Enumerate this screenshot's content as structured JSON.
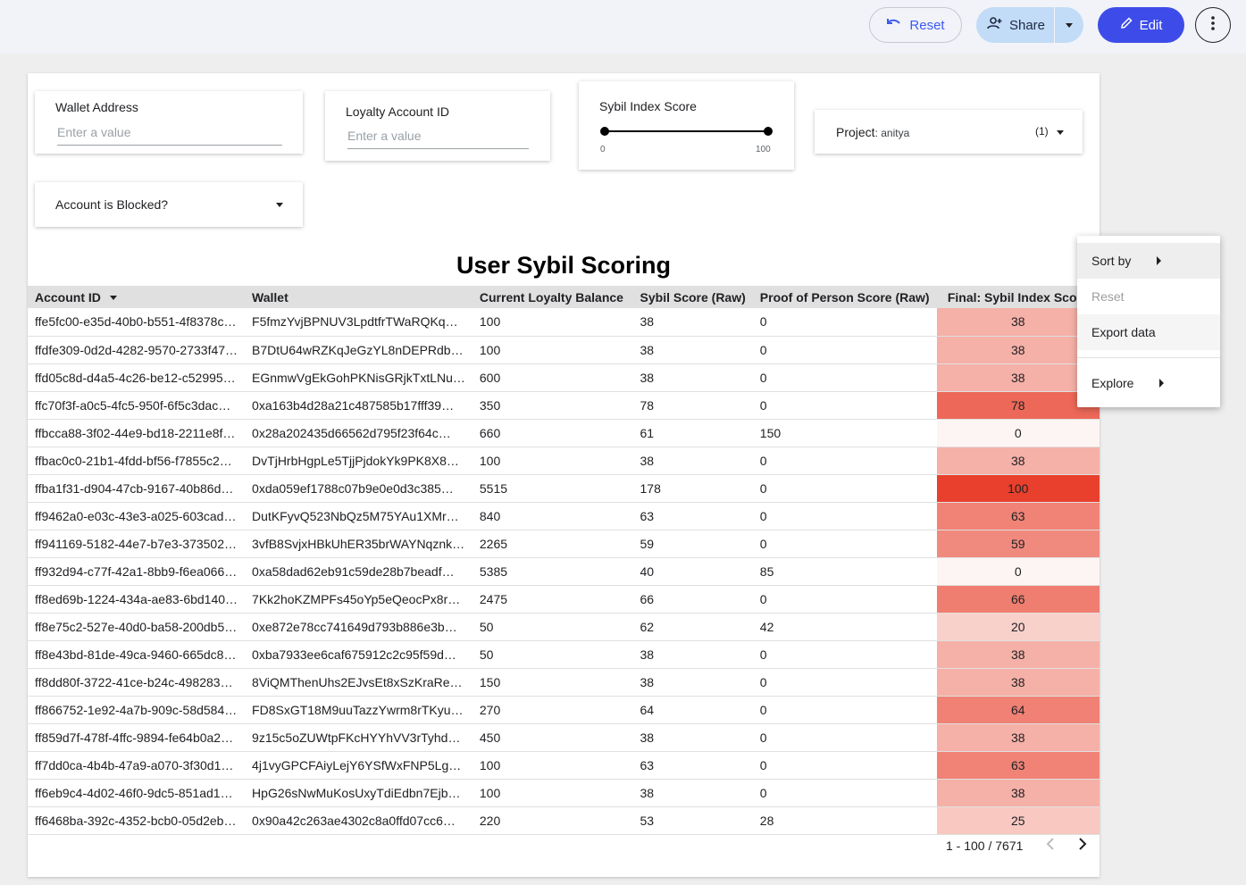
{
  "toolbar": {
    "reset_label": "Reset",
    "share_label": "Share",
    "edit_label": "Edit"
  },
  "filters": {
    "wallet": {
      "title": "Wallet Address",
      "placeholder": "Enter a value"
    },
    "loyalty": {
      "title": "Loyalty Account ID",
      "placeholder": "Enter a value"
    },
    "sybil": {
      "title": "Sybil Index Score",
      "min": "0",
      "max": "100"
    },
    "project": {
      "label": "Project",
      "value": ": anitya",
      "count": "(1)"
    },
    "blocked": {
      "title": "Account is Blocked?"
    }
  },
  "table": {
    "title": "User Sybil Scoring",
    "columns": [
      "Account ID",
      "Wallet",
      "Current Loyalty Balance",
      "Sybil Score (Raw)",
      "Proof of Person Score (Raw)",
      "Final: Sybil Index Score"
    ],
    "rows": [
      [
        "ffe5fc00-e35d-40b0-b551-4f8378c…",
        "F5fmzYvjBPNUV3LpdtfrTWaRQKq…",
        "100",
        "38",
        "0",
        "38"
      ],
      [
        "ffdfe309-0d2d-4282-9570-2733f47…",
        "B7DtU64wRZKqJeGzYL8nDEPRdb…",
        "100",
        "38",
        "0",
        "38"
      ],
      [
        "ffd05c8d-d4a5-4c26-be12-c52995…",
        "EGnmwVgEkGohPKNisGRjkTxtLNu…",
        "600",
        "38",
        "0",
        "38"
      ],
      [
        "ffc70f3f-a0c5-4fc5-950f-6f5c3dac…",
        "0xa163b4d28a21c487585b17fff39…",
        "350",
        "78",
        "0",
        "78"
      ],
      [
        "ffbcca88-3f02-44e9-bd18-2211e8f…",
        "0x28a202435d66562d795f23f64c…",
        "660",
        "61",
        "150",
        "0"
      ],
      [
        "ffbac0c0-21b1-4fdd-bf56-f7855c2…",
        "DvTjHrbHgpLe5TjjPjdokYk9PK8X8…",
        "100",
        "38",
        "0",
        "38"
      ],
      [
        "ffba1f31-d904-47cb-9167-40b86d…",
        "0xda059ef1788c07b9e0e0d3c385…",
        "5515",
        "178",
        "0",
        "100"
      ],
      [
        "ff9462a0-e03c-43e3-a025-603cad…",
        "DutKFyvQ523NbQz5M75YAu1XMr…",
        "840",
        "63",
        "0",
        "63"
      ],
      [
        "ff941169-5182-44e7-b7e3-373502…",
        "3vfB8SvjxHBkUhER35brWAYNqznk…",
        "2265",
        "59",
        "0",
        "59"
      ],
      [
        "ff932d94-c77f-42a1-8bb9-f6ea066…",
        "0xa58dad62eb91c59de28b7beadf…",
        "5385",
        "40",
        "85",
        "0"
      ],
      [
        "ff8ed69b-1224-434a-ae83-6bd140…",
        "7Kk2hoKZMPFs45oYp5eQeocPx8r…",
        "2475",
        "66",
        "0",
        "66"
      ],
      [
        "ff8e75c2-527e-40d0-ba58-200db5…",
        "0xe872e78cc741649d793b886e3b…",
        "50",
        "62",
        "42",
        "20"
      ],
      [
        "ff8e43bd-81de-49ca-9460-665dc8…",
        "0xba7933ee6caf675912c2c95f59d…",
        "50",
        "38",
        "0",
        "38"
      ],
      [
        "ff8dd80f-3722-41ce-b24c-498283…",
        "8ViQMThenUhs2EJvsEt8xSzKraRe…",
        "150",
        "38",
        "0",
        "38"
      ],
      [
        "ff866752-1e92-4a7b-909c-58d584…",
        "FD8SxGT18M9uuTazzYwrm8rTKyu…",
        "270",
        "64",
        "0",
        "64"
      ],
      [
        "ff859d7f-478f-4ffc-9894-fe64b0a2…",
        "9z15c5oZUWtpFKcHYYhVV3rTyhd…",
        "450",
        "38",
        "0",
        "38"
      ],
      [
        "ff7dd0ca-4b4b-47a9-a070-3f30d1…",
        "4j1vyGPCFAiyLejY6YSfWxFNP5Lg…",
        "100",
        "63",
        "0",
        "63"
      ],
      [
        "ff6eb9c4-4d02-46f0-9dc5-851ad1…",
        "HpG26sNwMuKosUxyTdiEdbn7Ejb…",
        "100",
        "38",
        "0",
        "38"
      ],
      [
        "ff6468ba-392c-4352-bcb0-05d2eb…",
        "0x90a42c263ae4302c8a0ffd07cc6…",
        "220",
        "53",
        "28",
        "25"
      ]
    ],
    "heat_color_high": "#e8402c",
    "heat_color_low": "#fdf5f3"
  },
  "pagination": {
    "label": "1 - 100 / 7671"
  },
  "context_menu": {
    "items": [
      {
        "label": "Sort by",
        "submenu": true,
        "enabled": true
      },
      {
        "label": "Reset",
        "submenu": false,
        "enabled": false
      },
      {
        "label": "Export data",
        "submenu": false,
        "enabled": true
      },
      {
        "label": "Explore",
        "submenu": true,
        "enabled": true
      }
    ]
  }
}
